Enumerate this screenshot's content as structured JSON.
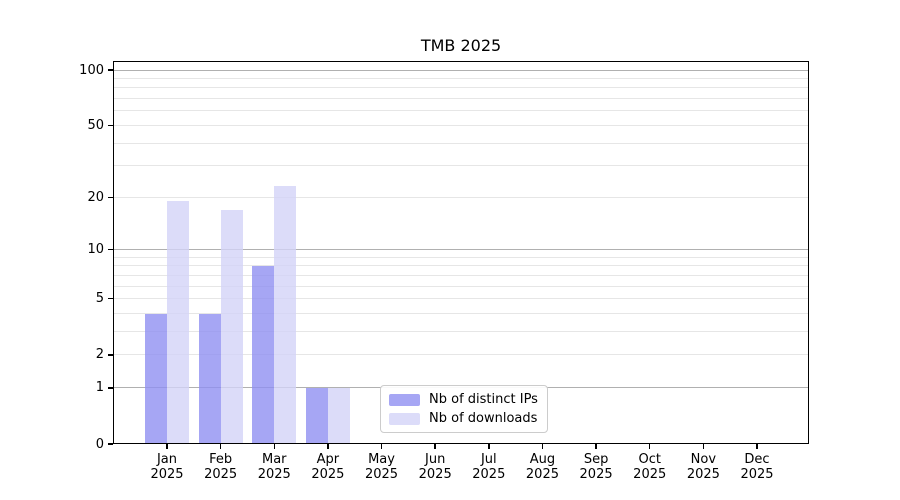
{
  "chart_data": {
    "type": "bar",
    "title": "TMB 2025",
    "categories": [
      "Jan",
      "Feb",
      "Mar",
      "Apr",
      "May",
      "Jun",
      "Jul",
      "Aug",
      "Sep",
      "Oct",
      "Nov",
      "Dec"
    ],
    "category_year": "2025",
    "series": [
      {
        "name": "Nb of distinct IPs",
        "color": "#a6a6f4",
        "values": [
          4,
          4,
          8,
          1,
          0,
          0,
          0,
          0,
          0,
          0,
          0,
          0
        ]
      },
      {
        "name": "Nb of downloads",
        "color": "#dcdcf9",
        "values": [
          19,
          17,
          23,
          1,
          0,
          0,
          0,
          0,
          0,
          0,
          0,
          0
        ]
      }
    ],
    "yscale": "log1p",
    "yticks": [
      0,
      1,
      2,
      5,
      10,
      20,
      50,
      100
    ],
    "ylim": [
      0,
      112
    ],
    "grid": true,
    "legend_position": "lower center"
  },
  "colors": {
    "background": "#ffffff",
    "axis": "#000000",
    "text": "#000000",
    "gridline_major": "#b0b0b0",
    "gridline_minor": "#e6e6e6",
    "legend_border": "#cccccc"
  }
}
